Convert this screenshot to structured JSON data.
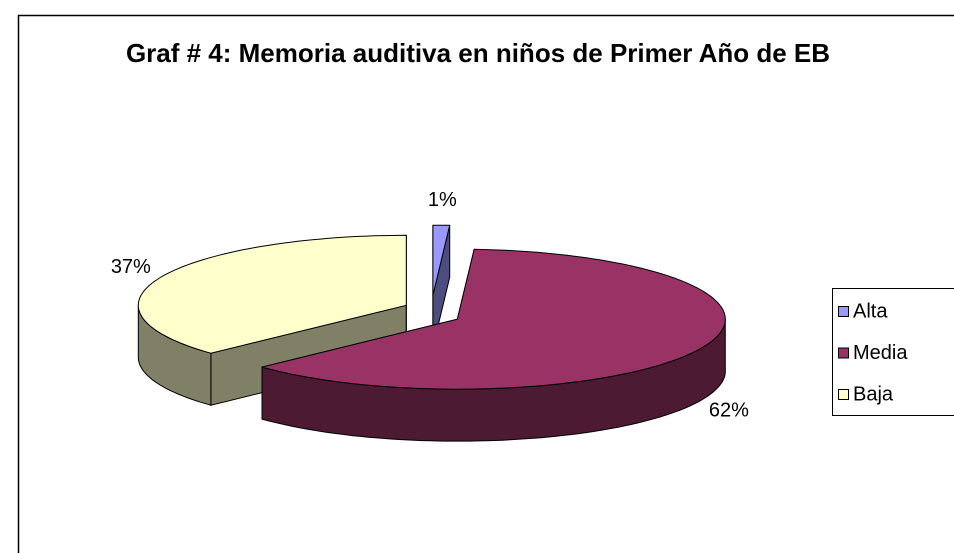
{
  "chart_data": {
    "type": "pie",
    "title": "Graf # 4: Memoria auditiva en niños de Primer Año de EB",
    "categories": [
      "Alta",
      "Media",
      "Baja"
    ],
    "values": [
      1,
      62,
      37
    ],
    "value_labels": [
      "1%",
      "62%",
      "37%"
    ],
    "colors": [
      "#9999ff",
      "#993366",
      "#ffffcc"
    ],
    "legend": "right"
  }
}
